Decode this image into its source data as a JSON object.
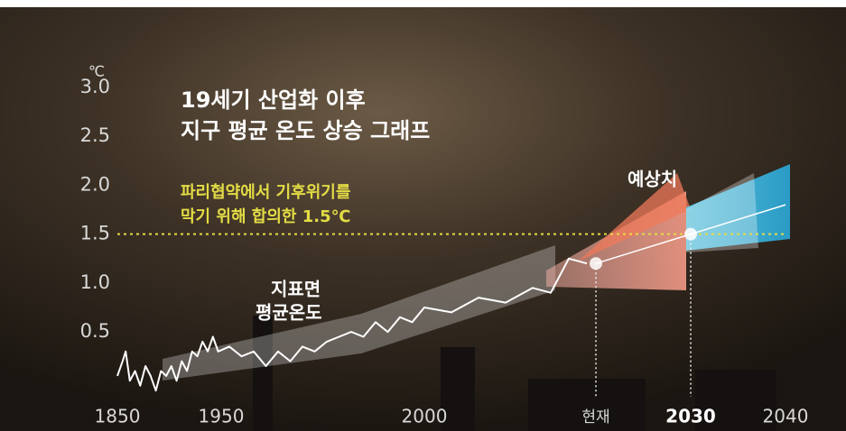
{
  "chart_data": {
    "type": "line",
    "title": [
      "19세기 산업화 이후",
      "지구 평균 온도 상승 그래프"
    ],
    "y_label": "℃",
    "x": [
      1850,
      1855,
      1858,
      1862,
      1867,
      1872,
      1877,
      1882,
      1887,
      1892,
      1897,
      1902,
      1907,
      1912,
      1917,
      1922,
      1927,
      1932,
      1937,
      1942,
      1947,
      1952,
      1955,
      1958,
      1961,
      1964,
      1967,
      1970,
      1973,
      1976,
      1979,
      1982,
      1985,
      1988,
      1991,
      1994,
      1997,
      2000,
      2003,
      2006,
      2009,
      2012,
      2014,
      2016,
      2018
    ],
    "series": [
      {
        "color": "#ffffff",
        "values": [
          0.05,
          0.2,
          0.3,
          0.0,
          0.1,
          -0.05,
          0.15,
          0.05,
          -0.1,
          0.1,
          0.05,
          0.15,
          0.0,
          0.2,
          0.1,
          0.3,
          0.25,
          0.4,
          0.3,
          0.45,
          0.3,
          0.35,
          0.25,
          0.3,
          0.15,
          0.3,
          0.2,
          0.35,
          0.3,
          0.4,
          0.45,
          0.5,
          0.45,
          0.6,
          0.5,
          0.65,
          0.6,
          0.75,
          0.7,
          0.85,
          0.8,
          0.95,
          0.9,
          1.25,
          1.2
        ]
      }
    ],
    "projection": {
      "color": "#ffffff",
      "x": [
        2019,
        2030,
        2040
      ],
      "values": [
        1.2,
        1.5,
        1.8
      ]
    },
    "markers": [
      {
        "x": 2019,
        "y": 1.2
      },
      {
        "x": 2030,
        "y": 1.5
      }
    ],
    "threshold": {
      "value": 1.5,
      "color": "#e3dc45",
      "label": [
        "파리협약에서 기후위기를",
        "막기 위해 합의한 1.5℃"
      ]
    },
    "annotations": {
      "surface": [
        "지표면",
        "평균온도"
      ],
      "forecast": "예상치"
    },
    "xlim": [
      1850,
      2044
    ],
    "xticks": [
      1850,
      1950,
      2000,
      {
        "value": 2019,
        "label": "현재"
      },
      2030,
      2040
    ],
    "ylim": [
      -0.2,
      3.0
    ],
    "yticks": [
      0.5,
      {
        "value": 1,
        "label": "1.0"
      },
      1.5,
      {
        "value": 2,
        "label": "2.0"
      },
      2.5,
      {
        "value": 3,
        "label": "3.0"
      }
    ],
    "grid": false
  }
}
